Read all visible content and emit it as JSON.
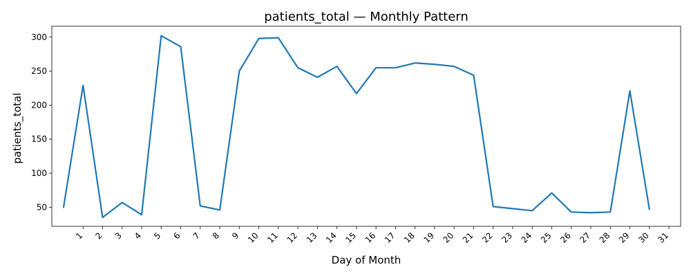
{
  "chart_data": {
    "type": "line",
    "title": "patients_total — Monthly Pattern",
    "xlabel": "Day of Month",
    "ylabel": "patients_total",
    "x_tick_labels": [
      "1",
      "2",
      "3",
      "4",
      "5",
      "6",
      "7",
      "8",
      "9",
      "10",
      "11",
      "12",
      "13",
      "14",
      "15",
      "16",
      "17",
      "18",
      "19",
      "20",
      "21",
      "22",
      "23",
      "24",
      "25",
      "26",
      "27",
      "28",
      "29",
      "30",
      "31"
    ],
    "x_tick_rotation": "45 degrees",
    "x_tick_positions": [
      1,
      2,
      3,
      4,
      5,
      6,
      7,
      8,
      9,
      10,
      11,
      12,
      13,
      14,
      15,
      16,
      17,
      18,
      19,
      20,
      21,
      22,
      23,
      24,
      25,
      26,
      27,
      28,
      29,
      30,
      31
    ],
    "xlim": [
      -0.6,
      31.6
    ],
    "ylim": [
      22,
      316
    ],
    "y_ticks": [
      50,
      100,
      150,
      200,
      250,
      300
    ],
    "grid": false,
    "series": [
      {
        "color": "#1f77b4",
        "x": [
          0,
          1,
          2,
          3,
          4,
          5,
          6,
          7,
          8,
          9,
          10,
          11,
          12,
          13,
          14,
          15,
          16,
          17,
          18,
          19,
          20,
          21,
          22,
          23,
          24,
          25,
          26,
          27,
          28,
          29,
          30
        ],
        "values": [
          50,
          229,
          35,
          57,
          39,
          302,
          286,
          52,
          46,
          250,
          298,
          299,
          255,
          241,
          257,
          217,
          255,
          255,
          262,
          260,
          257,
          244,
          51,
          48,
          45,
          71,
          43,
          42,
          43,
          221,
          47
        ]
      }
    ]
  }
}
